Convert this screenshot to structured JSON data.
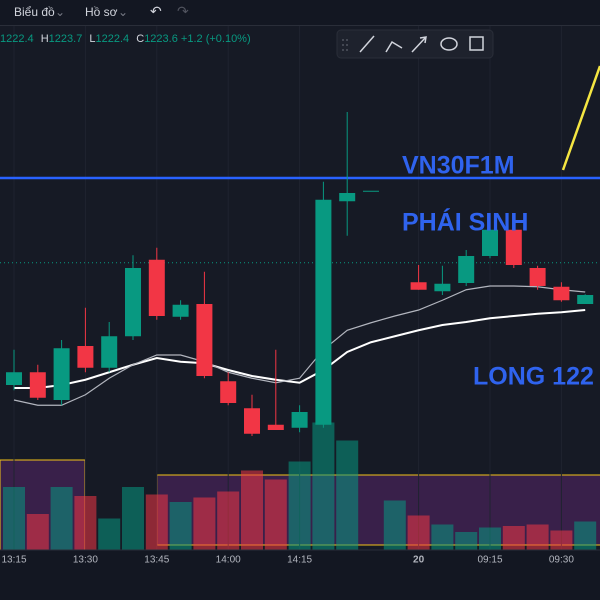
{
  "toolbar": {
    "chart_menu": "Biểu đồ",
    "profile_menu": "Hồ sơ"
  },
  "legend": {
    "open_value": "1222.4",
    "high_label": "H",
    "high_value": "1223.7",
    "low_label": "L",
    "low_value": "1222.4",
    "close_label": "C",
    "close_value": "1223.6",
    "change": "+1.2",
    "change_pct": "(+0.10%)"
  },
  "chart_data": {
    "type": "candlestick",
    "categories": [
      "13:15",
      null,
      null,
      "13:30",
      null,
      null,
      "13:45",
      null,
      null,
      "14:00",
      null,
      null,
      "14:15",
      null,
      null,
      null,
      null,
      "20",
      null,
      null,
      "09:15",
      null,
      null,
      "09:30",
      null
    ],
    "open": [
      1211.6,
      1213.3,
      1209.6,
      1216.8,
      1213.9,
      1218.1,
      1228.3,
      1220.7,
      1222.4,
      1212.1,
      1208.5,
      1206.3,
      1205.9,
      1206.3,
      1236.1,
      1237.5,
      null,
      1225.3,
      1224.1,
      1225.2,
      1228.8,
      1232.3,
      1227.2,
      1224.7,
      1222.4
    ],
    "high": [
      1216.3,
      1214.3,
      1217.6,
      1221.9,
      1220.0,
      1228.9,
      1229.9,
      1222.9,
      1226.7,
      1213.3,
      1210.3,
      1216.3,
      1208.9,
      1238.7,
      1248.0,
      1237.5,
      null,
      1227.6,
      1227.5,
      1229.6,
      1232.9,
      1232.5,
      1227.5,
      1225.3,
      1223.7
    ],
    "low": [
      1210.9,
      1209.6,
      1208.9,
      1213.3,
      1213.3,
      1217.6,
      1220.3,
      1220.3,
      1212.5,
      1208.9,
      1204.8,
      1205.6,
      1205.3,
      1205.9,
      1231.5,
      1237.5,
      null,
      1224.3,
      1223.6,
      1224.8,
      1228.5,
      1227.2,
      1224.3,
      1222.7,
      1222.4
    ],
    "close": [
      1213.3,
      1209.9,
      1216.5,
      1213.9,
      1218.1,
      1227.2,
      1220.8,
      1222.3,
      1212.8,
      1209.2,
      1205.1,
      1205.6,
      1208.0,
      1236.3,
      1237.2,
      1237.5,
      null,
      1224.3,
      1225.1,
      1228.8,
      1232.3,
      1227.6,
      1224.8,
      1222.9,
      1223.6
    ],
    "volume": [
      42,
      24,
      42,
      36,
      21,
      42,
      37,
      32,
      35,
      39,
      53,
      47,
      59,
      85,
      73,
      null,
      33,
      23,
      17,
      12,
      15,
      16,
      17,
      13,
      19
    ],
    "volume_lim": [
      0,
      100
    ],
    "ylim": [
      1189.6,
      1259.6
    ],
    "up_color": "#089981",
    "down_color": "#f23645",
    "series": [
      {
        "color": "#ffffff",
        "values": [
          1211.2,
          1211.2,
          1211.6,
          1212.3,
          1213.3,
          1214.3,
          1215.2,
          1214.7,
          1214.5,
          1213.6,
          1212.8,
          1212.3,
          1211.9,
          1213.6,
          1216.0,
          1217.3,
          1218.1,
          1218.9,
          1219.6,
          1220.0,
          1220.5,
          1220.8,
          1221.1,
          1221.3,
          1221.6
        ]
      },
      {
        "color": "#b2b5be",
        "values": [
          1209.6,
          1208.9,
          1208.9,
          1210.3,
          1212.5,
          1214.3,
          1215.6,
          1215.6,
          1214.7,
          1213.3,
          1212.5,
          1211.9,
          1212.5,
          1216.3,
          1218.9,
          1219.9,
          1220.8,
          1221.6,
          1222.9,
          1224.3,
          1224.8,
          1224.8,
          1224.7,
          1224.3,
          1224.0
        ]
      }
    ],
    "levels": [
      {
        "value": 1239.2,
        "color": "#2962ff",
        "dashed": false
      },
      {
        "value": 1227.9,
        "color": "#089981",
        "dashed": true
      }
    ],
    "annotations": [
      "VN30F1M",
      "PHÁI SINH",
      "LONG 122"
    ]
  }
}
